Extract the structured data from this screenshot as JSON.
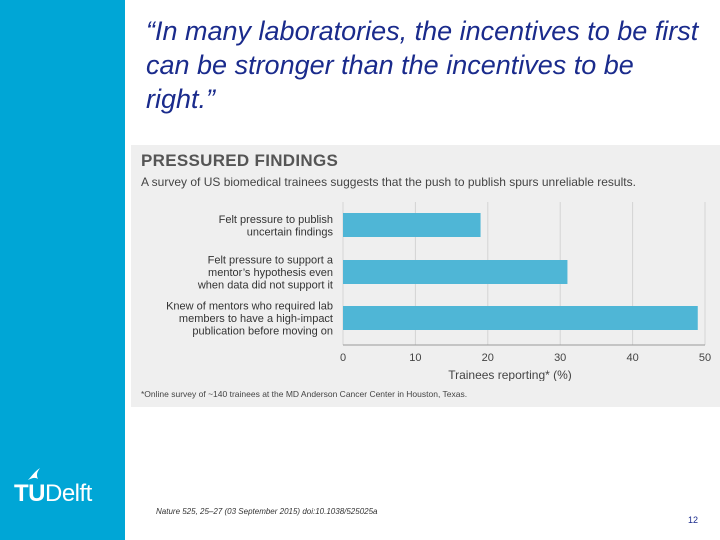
{
  "slide": {
    "quote": "“In many laboratories, the incentives to be first can be stronger than the incentives to be right.”",
    "citation": "Nature 525, 25–27 (03 September 2015) doi:10.1038/525025a",
    "page_number": "12",
    "logo": {
      "bold": "TU",
      "regular": "Delft"
    }
  },
  "colors": {
    "sidebar": "#00a6d6",
    "quote_text": "#1a2b8c",
    "bar": "#4fb6d6"
  },
  "chart_data": {
    "type": "bar",
    "orientation": "horizontal",
    "title": "PRESSURED FINDINGS",
    "subtitle": "A survey of US biomedical trainees suggests that the push to publish spurs unreliable results.",
    "categories": [
      [
        "Felt pressure to publish",
        "uncertain findings"
      ],
      [
        "Felt pressure to support a",
        "mentor’s hypothesis even",
        "when data did not support it"
      ],
      [
        "Knew of mentors who required lab",
        "members to have a high-impact",
        "publication before moving on"
      ]
    ],
    "values": [
      19,
      31,
      49
    ],
    "xlabel": "Trainees reporting* (%)",
    "xlim": [
      0,
      50
    ],
    "xticks": [
      0,
      10,
      20,
      30,
      40,
      50
    ],
    "grid": true,
    "footnote": "*Online survey of ~140 trainees at the MD Anderson Cancer Center in Houston, Texas."
  }
}
